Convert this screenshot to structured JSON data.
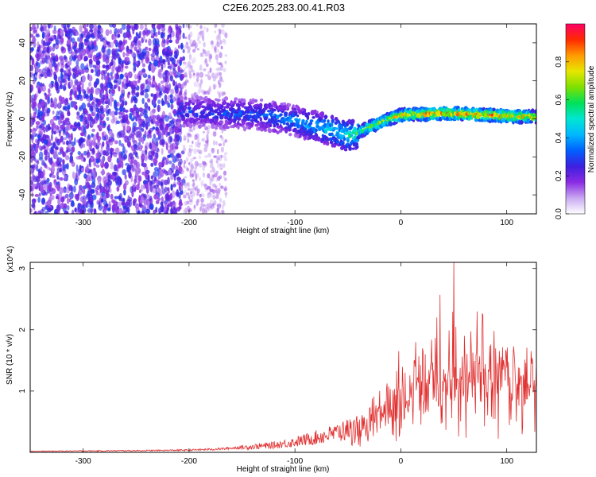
{
  "title": "C2E6.2025.283.00.41.R03",
  "colors": {
    "snr_line": "#e03030",
    "colormap": [
      "#ffffff",
      "#c9a8f2",
      "#8a2be2",
      "#3d1fe0",
      "#0060ff",
      "#00b7ff",
      "#00e6d2",
      "#00e15a",
      "#7ee000",
      "#e6e600",
      "#ff9b00",
      "#ff2a00",
      "#ff0066"
    ]
  },
  "chart_data": [
    {
      "type": "heatmap",
      "title": "C2E6.2025.283.00.41.R03",
      "xlabel": "Height of straight line (km)",
      "ylabel": "Frequency (Hz)",
      "xlim": [
        -350,
        128
      ],
      "ylim": [
        -50,
        50
      ],
      "xticks": [
        -300,
        -200,
        -100,
        0,
        100
      ],
      "yticks": [
        -40,
        -20,
        0,
        20,
        40
      ],
      "colorbar": {
        "label": "Normalized spectral amplitude",
        "range": [
          0,
          1
        ],
        "ticks": [
          0.0,
          0.2,
          0.4,
          0.6,
          0.8
        ],
        "tick_labels": [
          "0.0",
          "0.2",
          "0.4",
          "0.6",
          "0.8"
        ]
      },
      "ridge": {
        "description": "frequency centre of the signal band vs height",
        "x": [
          -210,
          -170,
          -130,
          -100,
          -80,
          -60,
          -50,
          -40,
          -20,
          0,
          40,
          80,
          128
        ],
        "y": [
          4,
          3,
          2,
          -1,
          -4,
          -7,
          -9,
          -7,
          -2,
          2,
          3,
          2,
          1
        ],
        "amplitude": [
          0.3,
          0.32,
          0.35,
          0.4,
          0.45,
          0.5,
          0.55,
          0.62,
          0.75,
          0.8,
          0.9,
          0.92,
          0.8
        ]
      },
      "noise": {
        "dense_region_x": [
          -350,
          -205
        ],
        "sparse_region_x": [
          -205,
          -165
        ],
        "amplitude": [
          0.1,
          0.3
        ]
      }
    },
    {
      "type": "line",
      "xlabel": "Height of straight line (km)",
      "ylabel": "SNR (10 * v/v)",
      "scale_label": "(x10^4)",
      "xlim": [
        -350,
        128
      ],
      "ylim": [
        0,
        3.1
      ],
      "xticks": [
        -300,
        -200,
        -100,
        0,
        100
      ],
      "yticks": [
        1,
        2,
        3
      ],
      "series": [
        {
          "name": "SNR",
          "envelope": {
            "x": [
              -350,
              -250,
              -200,
              -170,
              -150,
              -120,
              -100,
              -80,
              -60,
              -40,
              -20,
              -10,
              0,
              10,
              20,
              30,
              40,
              50,
              60,
              70,
              80,
              90,
              100,
              110,
              120,
              128
            ],
            "y": [
              0.02,
              0.03,
              0.04,
              0.06,
              0.09,
              0.13,
              0.19,
              0.27,
              0.36,
              0.48,
              0.62,
              0.72,
              0.88,
              1.02,
              1.12,
              1.18,
              1.3,
              1.38,
              1.4,
              1.42,
              1.4,
              1.38,
              1.38,
              1.36,
              1.35,
              1.35
            ]
          },
          "peaks": [
            {
              "x": -2,
              "y": 1.65
            },
            {
              "x": 14,
              "y": 1.8
            },
            {
              "x": 28,
              "y": 1.4
            },
            {
              "x": 34,
              "y": 2.2
            },
            {
              "x": 37,
              "y": 2.57
            },
            {
              "x": 50,
              "y": 3.1
            },
            {
              "x": 52,
              "y": 2.05
            },
            {
              "x": 72,
              "y": 2.3
            },
            {
              "x": 60,
              "y": 1.9
            }
          ]
        }
      ]
    }
  ]
}
